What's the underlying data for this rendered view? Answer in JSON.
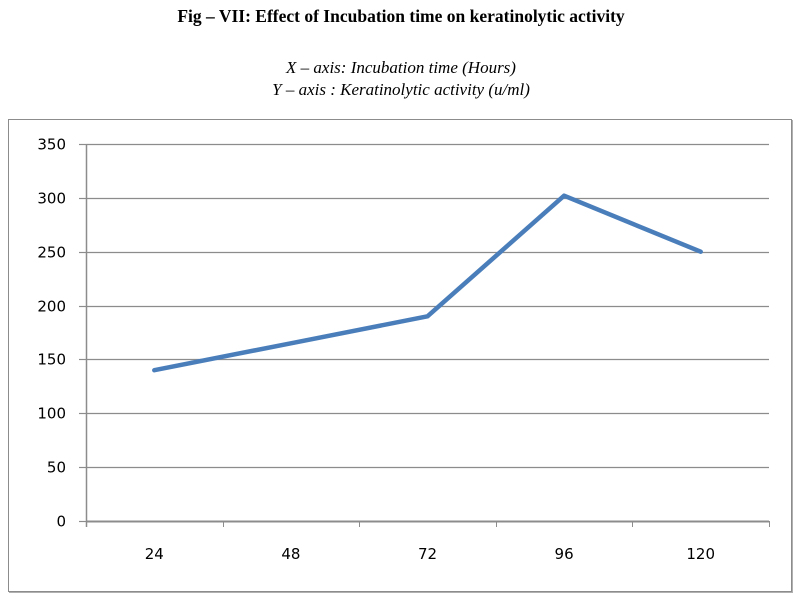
{
  "figure": {
    "title": "Fig – VII: Effect of Incubation time on keratinolytic activity",
    "x_axis_note": "X – axis: Incubation time (Hours)",
    "y_axis_note": "Y – axis : Keratinolytic activity (u/ml)"
  },
  "chart_data": {
    "type": "line",
    "title": "Fig – VII: Effect of Incubation time on keratinolytic activity",
    "xlabel": "Incubation time (Hours)",
    "ylabel": "Keratinolytic activity (u/ml)",
    "categories": [
      "24",
      "48",
      "72",
      "96",
      "120"
    ],
    "series": [
      {
        "name": "Keratinolytic activity",
        "values": [
          140,
          165,
          190,
          302,
          250
        ],
        "color": "#4a7ebb"
      }
    ],
    "ylim": [
      0,
      350
    ],
    "yticks": [
      0,
      50,
      100,
      150,
      200,
      250,
      300,
      350
    ],
    "grid": true,
    "legend": "none"
  }
}
